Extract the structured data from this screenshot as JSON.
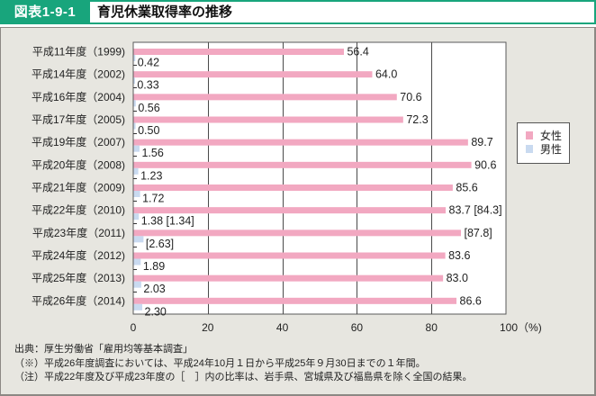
{
  "header": {
    "figure_label": "図表1-9-1",
    "title": "育児休業取得率の推移",
    "accent_color": "#18a57c"
  },
  "legend": {
    "items": [
      {
        "label": "女性",
        "color": "#f2a8c1"
      },
      {
        "label": "男性",
        "color": "#c9daf0"
      }
    ]
  },
  "footer": {
    "source": "出典：厚生労働省「雇用均等基本調査」",
    "notes": [
      {
        "marker": "（※）",
        "text": "平成26年度調査においては、平成24年10月１日から平成25年９月30日までの１年間。"
      },
      {
        "marker": "（注）",
        "text": "平成22年度及び平成23年度の［　］内の比率は、岩手県、宮城県及び福島県を除く全国の結果。"
      }
    ]
  },
  "chart_data": {
    "type": "bar",
    "orientation": "horizontal",
    "title": "育児休業取得率の推移",
    "xlabel": "（%)",
    "ylabel": "",
    "xlim": [
      0,
      100
    ],
    "xticks": [
      0,
      20,
      40,
      60,
      80,
      100
    ],
    "xtick_labels": [
      "0",
      "20",
      "40",
      "60",
      "80",
      "100（%)"
    ],
    "grid": true,
    "legend_position": "right",
    "categories": [
      "平成11年度（1999)",
      "平成14年度（2002)",
      "平成16年度（2004)",
      "平成17年度（2005)",
      "平成19年度（2007)",
      "平成20年度（2008)",
      "平成21年度（2009)",
      "平成22年度（2010)",
      "平成23年度（2011)",
      "平成24年度（2012)",
      "平成25年度（2013)",
      "平成26年度（2014)"
    ],
    "series": [
      {
        "name": "女性",
        "color": "#f2a8c1",
        "values": [
          56.4,
          64.0,
          70.6,
          72.3,
          89.7,
          90.6,
          85.6,
          83.7,
          87.8,
          83.6,
          83.0,
          86.6
        ],
        "labels": [
          "56.4",
          "64.0",
          "70.6",
          "72.3",
          "89.7",
          "90.6",
          "85.6",
          "83.7 [84.3]",
          "[87.8]",
          "83.6",
          "83.0",
          "86.6"
        ]
      },
      {
        "name": "男性",
        "color": "#c9daf0",
        "values": [
          0.42,
          0.33,
          0.56,
          0.5,
          1.56,
          1.23,
          1.72,
          1.38,
          2.63,
          1.89,
          2.03,
          2.3
        ],
        "labels": [
          "0.42",
          "0.33",
          "0.56",
          "0.50",
          "1.56",
          "1.23",
          "1.72",
          "1.38 [1.34]",
          "[2.63]",
          "1.89",
          "2.03",
          "2.30"
        ]
      }
    ]
  }
}
